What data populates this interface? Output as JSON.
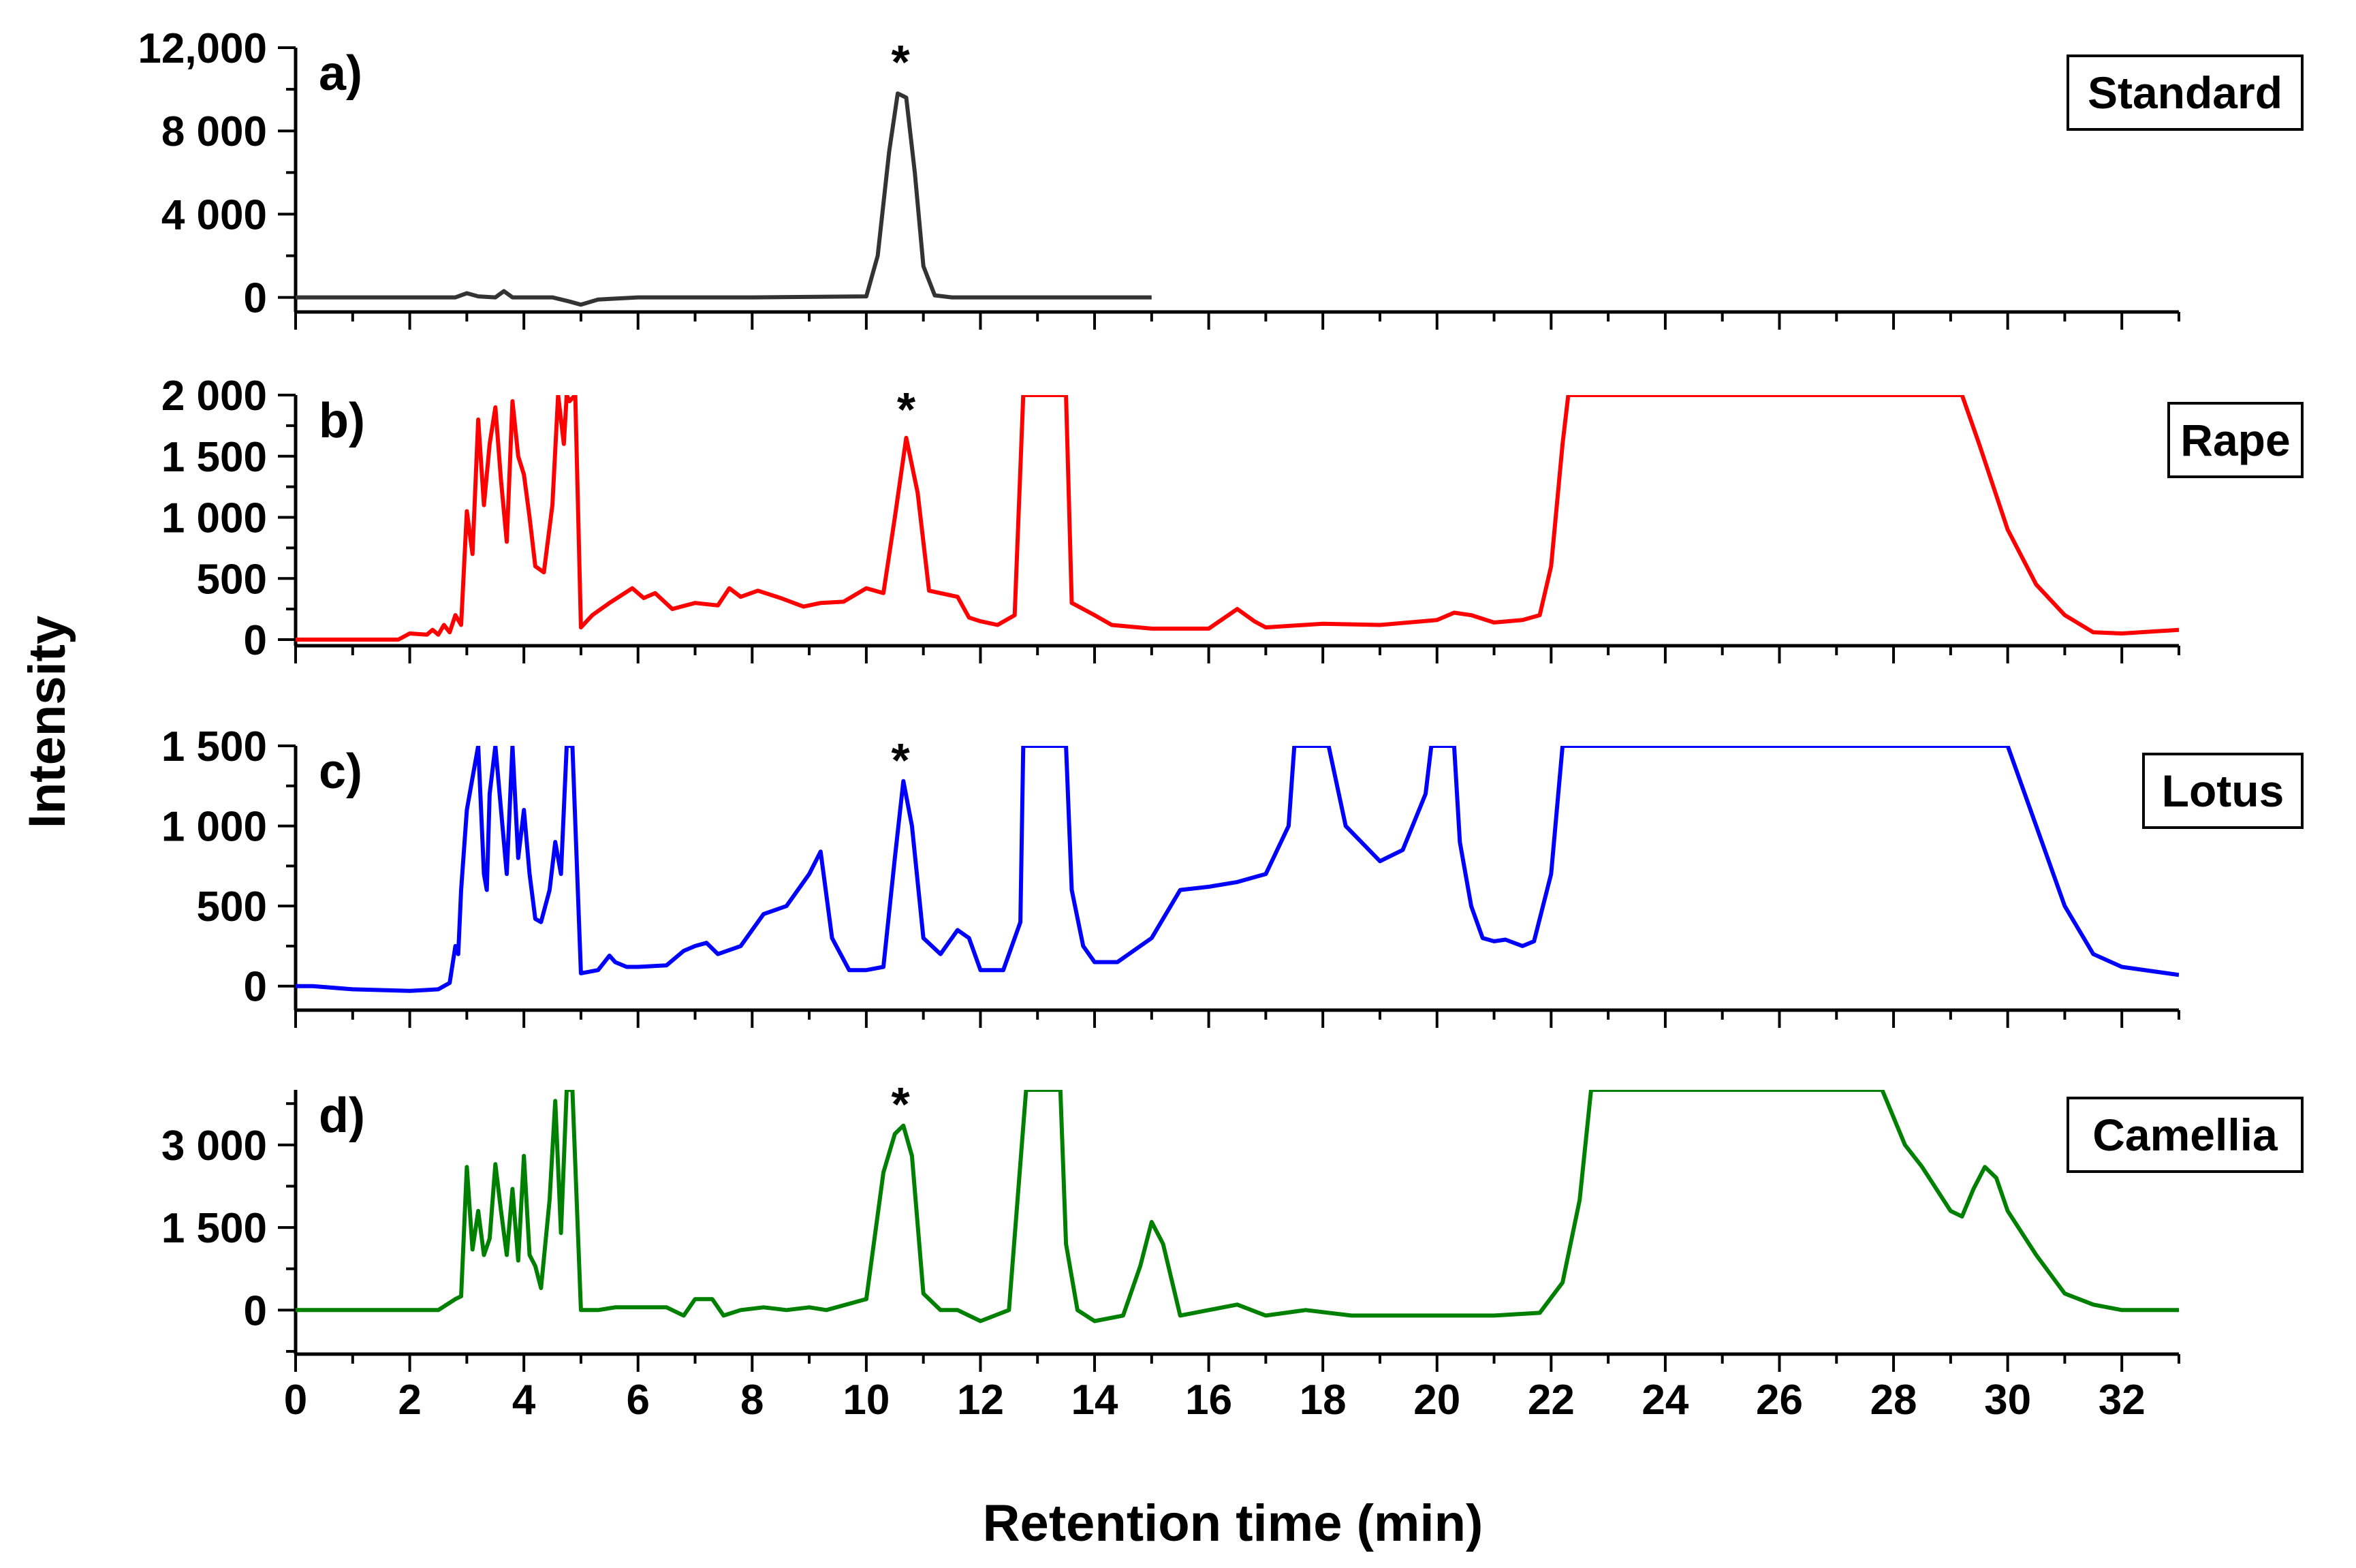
{
  "chart_data": {
    "type": "line",
    "xlabel": "Retention time (min)",
    "ylabel": "Intensity",
    "xlim": [
      0,
      33
    ],
    "x_ticks": [
      0,
      2,
      4,
      6,
      8,
      10,
      12,
      14,
      16,
      18,
      20,
      22,
      24,
      26,
      28,
      30,
      32
    ],
    "x_tick_labels": [
      "0",
      "2",
      "4",
      "6",
      "8",
      "10",
      "12",
      "14",
      "16",
      "18",
      "20",
      "22",
      "24",
      "26",
      "28",
      "30",
      "32"
    ],
    "peak_marker": "*",
    "panels": [
      {
        "label": "a)",
        "name": "Standard",
        "color": "#333333",
        "ylim": [
          -700,
          12000
        ],
        "y_ticks": [
          0,
          4000,
          8000,
          12000
        ],
        "y_tick_labels": [
          "0",
          "4 000",
          "8 000",
          "12,000"
        ],
        "star_x": 10.6,
        "x": [
          0,
          2.8,
          3.0,
          3.2,
          3.5,
          3.65,
          3.8,
          4.5,
          4.8,
          5.0,
          5.3,
          6.0,
          8.0,
          10.0,
          10.2,
          10.4,
          10.55,
          10.7,
          10.85,
          11.0,
          11.2,
          11.5,
          13.0,
          15.0
        ],
        "y": [
          0,
          0,
          200,
          50,
          0,
          300,
          0,
          0,
          -200,
          -350,
          -100,
          0,
          0,
          50,
          2000,
          7000,
          9800,
          9600,
          6000,
          1500,
          100,
          0,
          0,
          0
        ]
      },
      {
        "label": "b)",
        "name": "Rape",
        "color": "#ff0000",
        "ylim": [
          -50,
          2000
        ],
        "y_ticks": [
          0,
          500,
          1000,
          1500,
          2000
        ],
        "y_tick_labels": [
          "0",
          "500",
          "1 000",
          "1 500",
          "2 000"
        ],
        "star_x": 10.7,
        "x": [
          0,
          1.8,
          2.0,
          2.3,
          2.4,
          2.5,
          2.6,
          2.7,
          2.8,
          2.9,
          3.0,
          3.1,
          3.2,
          3.3,
          3.4,
          3.5,
          3.6,
          3.7,
          3.8,
          3.9,
          4.0,
          4.1,
          4.2,
          4.35,
          4.5,
          4.6,
          4.7,
          4.75,
          4.8,
          4.9,
          5.0,
          5.2,
          5.5,
          5.9,
          6.1,
          6.3,
          6.6,
          7.0,
          7.4,
          7.6,
          7.8,
          8.1,
          8.5,
          8.9,
          9.2,
          9.6,
          10.0,
          10.3,
          10.5,
          10.7,
          10.9,
          11.1,
          11.3,
          11.6,
          11.8,
          12.0,
          12.3,
          12.6,
          12.75,
          12.8,
          12.85,
          13.5,
          13.6,
          13.8,
          14.0,
          14.3,
          15.0,
          16.0,
          16.5,
          16.8,
          17.0,
          18.0,
          19.0,
          20.0,
          20.3,
          20.6,
          21.0,
          21.5,
          21.8,
          22.0,
          22.2,
          22.3,
          29.2,
          29.5,
          30.0,
          30.5,
          31.0,
          31.5,
          32.0,
          33.0
        ],
        "y": [
          0,
          0,
          50,
          40,
          80,
          40,
          120,
          60,
          200,
          120,
          1050,
          700,
          1800,
          1100,
          1600,
          1900,
          1300,
          800,
          1950,
          1500,
          1350,
          1000,
          600,
          550,
          1100,
          2000,
          1600,
          2000,
          1950,
          2000,
          100,
          200,
          300,
          420,
          340,
          380,
          250,
          300,
          280,
          420,
          350,
          400,
          340,
          270,
          300,
          310,
          420,
          380,
          1000,
          1650,
          1200,
          400,
          380,
          350,
          180,
          150,
          120,
          200,
          2000,
          2000,
          2000,
          2000,
          300,
          250,
          200,
          120,
          90,
          90,
          250,
          150,
          100,
          130,
          120,
          160,
          220,
          200,
          140,
          160,
          200,
          600,
          1600,
          2000,
          2000,
          1600,
          900,
          450,
          200,
          60,
          50,
          80
        ]
      },
      {
        "label": "c)",
        "name": "Lotus",
        "color": "#0000ff",
        "ylim": [
          -150,
          1500
        ],
        "y_ticks": [
          0,
          500,
          1000,
          1500
        ],
        "y_tick_labels": [
          "0",
          "500",
          "1 000",
          "1 500"
        ],
        "star_x": 10.6,
        "x": [
          0,
          0.3,
          1.0,
          2.0,
          2.5,
          2.7,
          2.8,
          2.85,
          2.9,
          3.0,
          3.1,
          3.2,
          3.3,
          3.35,
          3.4,
          3.5,
          3.6,
          3.7,
          3.8,
          3.9,
          4.0,
          4.1,
          4.2,
          4.3,
          4.45,
          4.55,
          4.65,
          4.75,
          4.8,
          4.85,
          5.0,
          5.3,
          5.5,
          5.6,
          5.8,
          6.0,
          6.5,
          6.8,
          7.0,
          7.2,
          7.4,
          7.8,
          8.2,
          8.6,
          9.0,
          9.2,
          9.4,
          9.7,
          10.0,
          10.3,
          10.5,
          10.65,
          10.8,
          11.0,
          11.3,
          11.6,
          11.8,
          12.0,
          12.4,
          12.7,
          12.75,
          12.8,
          13.5,
          13.6,
          13.8,
          14.0,
          14.4,
          15.0,
          15.5,
          16.0,
          16.5,
          17.0,
          17.4,
          17.5,
          18.0,
          18.1,
          18.4,
          19.0,
          19.4,
          19.8,
          19.9,
          20.3,
          20.4,
          20.6,
          20.8,
          21.0,
          21.2,
          21.5,
          21.7,
          22.0,
          22.2,
          30.0,
          30.5,
          31.0,
          31.5,
          32.0,
          33.0
        ],
        "y": [
          0,
          0,
          -20,
          -30,
          -20,
          20,
          250,
          200,
          600,
          1100,
          1300,
          1500,
          700,
          600,
          1200,
          1500,
          1100,
          700,
          1500,
          800,
          1100,
          700,
          420,
          400,
          600,
          900,
          700,
          1500,
          1500,
          1500,
          80,
          100,
          190,
          150,
          120,
          120,
          130,
          220,
          250,
          270,
          200,
          250,
          450,
          500,
          700,
          840,
          300,
          100,
          100,
          120,
          800,
          1280,
          1000,
          300,
          200,
          350,
          300,
          100,
          100,
          400,
          1500,
          1500,
          1500,
          600,
          250,
          150,
          150,
          300,
          600,
          620,
          650,
          700,
          1000,
          1500,
          1500,
          1500,
          1000,
          780,
          850,
          1200,
          1500,
          1500,
          900,
          500,
          300,
          280,
          290,
          250,
          280,
          700,
          1500,
          1500,
          1000,
          500,
          200,
          120,
          70
        ]
      },
      {
        "label": "d)",
        "name": "Camellia",
        "color": "#008000",
        "ylim": [
          -800,
          4000
        ],
        "y_ticks": [
          0,
          1500,
          3000
        ],
        "y_tick_labels": [
          "0",
          "1 500",
          "3 000"
        ],
        "star_x": 10.6,
        "x": [
          0,
          2.5,
          2.8,
          2.9,
          3.0,
          3.1,
          3.2,
          3.3,
          3.4,
          3.5,
          3.6,
          3.7,
          3.8,
          3.9,
          4.0,
          4.1,
          4.2,
          4.3,
          4.45,
          4.55,
          4.65,
          4.75,
          4.8,
          4.85,
          5.0,
          5.3,
          5.6,
          6.0,
          6.5,
          6.8,
          7.0,
          7.3,
          7.5,
          7.8,
          8.2,
          8.6,
          9.0,
          9.3,
          10.0,
          10.3,
          10.5,
          10.65,
          10.8,
          11.0,
          11.3,
          11.6,
          12.0,
          12.5,
          12.8,
          12.85,
          13.4,
          13.5,
          13.7,
          14.0,
          14.5,
          14.8,
          15.0,
          15.2,
          15.5,
          16.0,
          16.5,
          17.0,
          17.7,
          18.5,
          20.0,
          21.0,
          21.8,
          22.2,
          22.5,
          22.7,
          27.8,
          28.2,
          28.5,
          29.0,
          29.2,
          29.4,
          29.6,
          29.8,
          30.0,
          30.5,
          31.0,
          31.5,
          32.0,
          33.0
        ],
        "y": [
          0,
          0,
          200,
          250,
          2600,
          1100,
          1800,
          1000,
          1300,
          2650,
          1800,
          1000,
          2200,
          900,
          2800,
          1000,
          800,
          400,
          2000,
          3800,
          1400,
          4000,
          4000,
          4000,
          0,
          0,
          50,
          50,
          50,
          -100,
          200,
          200,
          -100,
          0,
          50,
          0,
          50,
          0,
          200,
          2500,
          3200,
          3350,
          2800,
          300,
          0,
          0,
          -200,
          0,
          4000,
          4000,
          4000,
          1200,
          0,
          -200,
          -100,
          800,
          1600,
          1200,
          -100,
          0,
          100,
          -100,
          0,
          -100,
          -100,
          -100,
          -50,
          500,
          2000,
          4000,
          4000,
          3000,
          2600,
          1800,
          1700,
          2200,
          2600,
          2400,
          1800,
          1000,
          300,
          100,
          0,
          0
        ]
      }
    ]
  }
}
